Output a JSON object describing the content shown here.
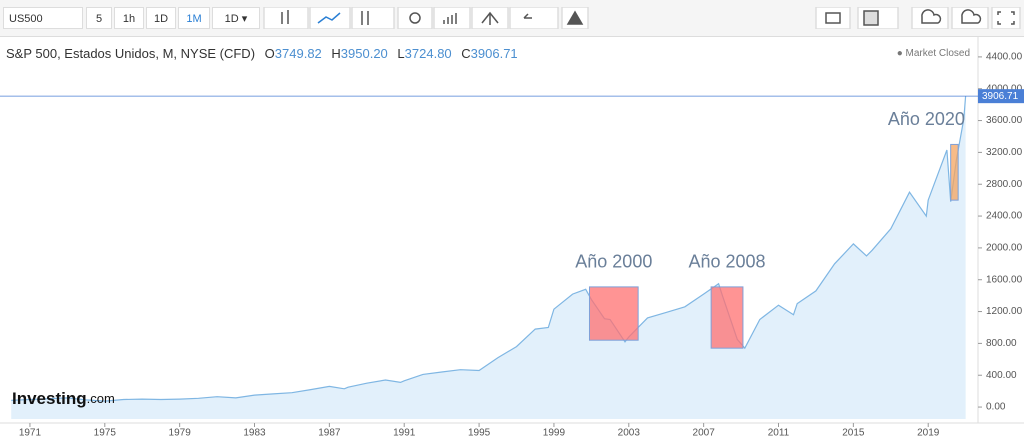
{
  "toolbar": {
    "symbol": "US500",
    "intervals": [
      "5",
      "1h",
      "1D",
      "1M",
      "1D ▾"
    ]
  },
  "legend": {
    "instrument": "S&P 500, Estados Unidos, M, NYSE (CFD)",
    "open": [
      "O",
      "3749.82"
    ],
    "high": [
      "H",
      "3950.20"
    ],
    "low": [
      "L",
      "3724.80"
    ],
    "close": [
      "C",
      "3906.71"
    ],
    "status": "Market Closed"
  },
  "watermark": [
    "Investing",
    ".com"
  ],
  "chart_data": {
    "type": "area",
    "series": [
      {
        "name": "S&P 500",
        "color": "#7fb6e3",
        "x": [
          1970,
          1971,
          1972,
          1973,
          1974,
          1975,
          1976,
          1977,
          1978,
          1979,
          1980,
          1981,
          1982,
          1983,
          1984,
          1985,
          1986,
          1987,
          1987.8,
          1988,
          1989,
          1990,
          1990.8,
          1991,
          1992,
          1993,
          1994,
          1995,
          1996,
          1997,
          1998,
          1998.7,
          1999,
          2000,
          2000.7,
          2001,
          2001.7,
          2002,
          2002.8,
          2003,
          2004,
          2005,
          2006,
          2007,
          2007.8,
          2008,
          2008.8,
          2009.2,
          2010,
          2011,
          2011.8,
          2012,
          2013,
          2014,
          2015,
          2015.7,
          2016,
          2017,
          2018,
          2018.9,
          2019,
          2020,
          2020.2,
          2020.5,
          2020.9,
          2021
        ],
        "values": [
          85,
          95,
          105,
          115,
          90,
          75,
          95,
          100,
          95,
          100,
          110,
          130,
          115,
          150,
          165,
          180,
          220,
          260,
          230,
          250,
          300,
          340,
          310,
          330,
          410,
          440,
          470,
          460,
          620,
          760,
          980,
          1000,
          1230,
          1420,
          1480,
          1350,
          1110,
          1100,
          820,
          880,
          1120,
          1190,
          1260,
          1420,
          1550,
          1400,
          850,
          740,
          1100,
          1280,
          1160,
          1300,
          1460,
          1800,
          2050,
          1900,
          1970,
          2240,
          2700,
          2400,
          2600,
          3230,
          2580,
          3100,
          3620,
          3906.71
        ]
      }
    ],
    "xlim": [
      1969.4,
      2021.5
    ],
    "xticks": [
      1971,
      1975,
      1979,
      1983,
      1987,
      1991,
      1995,
      1999,
      2003,
      2007,
      2011,
      2015,
      2019
    ],
    "ylim": [
      -150,
      4650
    ],
    "yticks": [
      {
        "value": 0,
        "label": "0.00"
      },
      {
        "value": 400,
        "label": "400.00"
      },
      {
        "value": 800,
        "label": "800.00"
      },
      {
        "value": 1200,
        "label": "1200.00"
      },
      {
        "value": 1600,
        "label": "1600.00"
      },
      {
        "value": 2000,
        "label": "2000.00"
      },
      {
        "value": 2400,
        "label": "2400.00"
      },
      {
        "value": 2800,
        "label": "2800.00"
      },
      {
        "value": 3200,
        "label": "3200.00"
      },
      {
        "value": 3600,
        "label": "3600.00"
      },
      {
        "value": 4000,
        "label": "4000.00"
      },
      {
        "value": 4400,
        "label": "4400.00"
      }
    ],
    "annotations": [
      {
        "text": "Año 2000",
        "x": [
          2000.9,
          2003.5
        ],
        "y": [
          840,
          1510
        ],
        "color": "#ff7070"
      },
      {
        "text": "Año 2008",
        "x": [
          2007.4,
          2009.1
        ],
        "y": [
          740,
          1510
        ],
        "color": "#ff7070"
      },
      {
        "text": "Año 2020",
        "x": [
          2020.2,
          2020.6
        ],
        "y": [
          2600,
          3300
        ],
        "color": "#f4a460"
      }
    ]
  }
}
